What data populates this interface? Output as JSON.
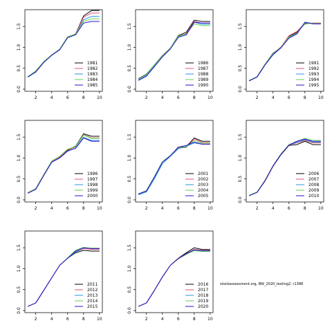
{
  "caption": "stockassessment.org, BW_2020_testing2, r1388",
  "colors": [
    "#000000",
    "#DF536B",
    "#2297E6",
    "#61D04F",
    "#2E0DCE"
  ],
  "chart_data": [
    {
      "type": "line",
      "x": [
        1,
        2,
        3,
        4,
        5,
        6,
        7,
        8,
        9,
        10
      ],
      "xticks": [
        2,
        4,
        6,
        8,
        10
      ],
      "yticks": [
        0.0,
        0.5,
        1.0,
        1.5
      ],
      "ylim": [
        -0.05,
        1.9
      ],
      "legend_position": "bottom-right",
      "series": [
        {
          "name": "1981",
          "values": [
            0.3,
            0.42,
            0.65,
            0.82,
            0.95,
            1.25,
            1.32,
            1.75,
            1.88,
            1.88
          ]
        },
        {
          "name": "1982",
          "values": [
            0.3,
            0.42,
            0.65,
            0.82,
            0.95,
            1.25,
            1.32,
            1.72,
            1.82,
            1.82
          ]
        },
        {
          "name": "1983",
          "values": [
            0.29,
            0.41,
            0.64,
            0.81,
            0.94,
            1.24,
            1.31,
            1.66,
            1.74,
            1.74
          ]
        },
        {
          "name": "1984",
          "values": [
            0.3,
            0.44,
            0.66,
            0.82,
            0.96,
            1.25,
            1.32,
            1.62,
            1.68,
            1.68
          ]
        },
        {
          "name": "1985",
          "values": [
            0.29,
            0.41,
            0.64,
            0.81,
            0.94,
            1.23,
            1.3,
            1.58,
            1.62,
            1.62
          ]
        }
      ]
    },
    {
      "type": "line",
      "x": [
        1,
        2,
        3,
        4,
        5,
        6,
        7,
        8,
        9,
        10
      ],
      "xticks": [
        2,
        4,
        6,
        8,
        10
      ],
      "yticks": [
        0.0,
        0.5,
        1.0,
        1.5
      ],
      "ylim": [
        -0.05,
        1.9
      ],
      "legend_position": "bottom-right",
      "series": [
        {
          "name": "1986",
          "values": [
            0.25,
            0.36,
            0.58,
            0.8,
            0.98,
            1.28,
            1.36,
            1.65,
            1.62,
            1.62
          ]
        },
        {
          "name": "1987",
          "values": [
            0.24,
            0.35,
            0.57,
            0.79,
            0.97,
            1.26,
            1.33,
            1.62,
            1.58,
            1.58
          ]
        },
        {
          "name": "1988",
          "values": [
            0.23,
            0.33,
            0.56,
            0.78,
            0.97,
            1.25,
            1.3,
            1.6,
            1.55,
            1.55
          ]
        },
        {
          "name": "1989",
          "values": [
            0.24,
            0.35,
            0.58,
            0.79,
            0.98,
            1.27,
            1.32,
            1.56,
            1.52,
            1.52
          ]
        },
        {
          "name": "1990",
          "values": [
            0.21,
            0.31,
            0.54,
            0.77,
            0.96,
            1.24,
            1.3,
            1.6,
            1.58,
            1.58
          ]
        }
      ]
    },
    {
      "type": "line",
      "x": [
        1,
        2,
        3,
        4,
        5,
        6,
        7,
        8,
        9,
        10
      ],
      "xticks": [
        2,
        4,
        6,
        8,
        10
      ],
      "yticks": [
        0.0,
        0.5,
        1.0,
        1.5
      ],
      "ylim": [
        -0.05,
        1.9
      ],
      "legend_position": "bottom-right",
      "series": [
        {
          "name": "1991",
          "values": [
            0.2,
            0.3,
            0.6,
            0.86,
            1.0,
            1.26,
            1.36,
            1.56,
            1.58,
            1.58
          ]
        },
        {
          "name": "1992",
          "values": [
            0.21,
            0.3,
            0.6,
            0.85,
            1.01,
            1.28,
            1.38,
            1.58,
            1.58,
            1.58
          ]
        },
        {
          "name": "1993",
          "values": [
            0.2,
            0.29,
            0.58,
            0.82,
            0.99,
            1.24,
            1.33,
            1.6,
            1.57,
            1.57
          ]
        },
        {
          "name": "1994",
          "values": [
            0.21,
            0.3,
            0.6,
            0.85,
            1.0,
            1.25,
            1.34,
            1.57,
            1.57,
            1.57
          ]
        },
        {
          "name": "1995",
          "values": [
            0.2,
            0.29,
            0.58,
            0.83,
            0.99,
            1.22,
            1.32,
            1.6,
            1.56,
            1.56
          ]
        }
      ]
    },
    {
      "type": "line",
      "x": [
        1,
        2,
        3,
        4,
        5,
        6,
        7,
        8,
        9,
        10
      ],
      "xticks": [
        2,
        4,
        6,
        8,
        10
      ],
      "yticks": [
        0.0,
        0.5,
        1.0,
        1.5
      ],
      "ylim": [
        -0.05,
        1.9
      ],
      "legend_position": "bottom-right",
      "series": [
        {
          "name": "1996",
          "values": [
            0.17,
            0.27,
            0.6,
            0.92,
            1.03,
            1.2,
            1.28,
            1.58,
            1.52,
            1.52
          ]
        },
        {
          "name": "1997",
          "values": [
            0.17,
            0.27,
            0.6,
            0.92,
            1.02,
            1.18,
            1.27,
            1.56,
            1.48,
            1.48
          ]
        },
        {
          "name": "1998",
          "values": [
            0.16,
            0.25,
            0.58,
            0.9,
            1.0,
            1.16,
            1.24,
            1.5,
            1.42,
            1.42
          ]
        },
        {
          "name": "1999",
          "values": [
            0.17,
            0.27,
            0.6,
            0.93,
            1.04,
            1.21,
            1.27,
            1.55,
            1.47,
            1.47
          ]
        },
        {
          "name": "2000",
          "values": [
            0.16,
            0.25,
            0.58,
            0.9,
            1.0,
            1.17,
            1.23,
            1.48,
            1.4,
            1.4
          ]
        }
      ]
    },
    {
      "type": "line",
      "x": [
        1,
        2,
        3,
        4,
        5,
        6,
        7,
        8,
        9,
        10
      ],
      "xticks": [
        2,
        4,
        6,
        8,
        10
      ],
      "yticks": [
        0.0,
        0.5,
        1.0,
        1.5
      ],
      "ylim": [
        -0.05,
        1.9
      ],
      "legend_position": "bottom-right",
      "series": [
        {
          "name": "2001",
          "values": [
            0.14,
            0.22,
            0.55,
            0.9,
            1.05,
            1.26,
            1.27,
            1.48,
            1.4,
            1.4
          ]
        },
        {
          "name": "2002",
          "values": [
            0.14,
            0.22,
            0.55,
            0.9,
            1.05,
            1.24,
            1.25,
            1.46,
            1.37,
            1.37
          ]
        },
        {
          "name": "2003",
          "values": [
            0.12,
            0.19,
            0.5,
            0.86,
            1.04,
            1.22,
            1.28,
            1.36,
            1.33,
            1.33
          ]
        },
        {
          "name": "2004",
          "values": [
            0.14,
            0.22,
            0.56,
            0.91,
            1.06,
            1.25,
            1.26,
            1.42,
            1.35,
            1.35
          ]
        },
        {
          "name": "2005",
          "values": [
            0.14,
            0.21,
            0.54,
            0.9,
            1.05,
            1.26,
            1.3,
            1.38,
            1.33,
            1.33
          ]
        }
      ]
    },
    {
      "type": "line",
      "x": [
        1,
        2,
        3,
        4,
        5,
        6,
        7,
        8,
        9,
        10
      ],
      "xticks": [
        2,
        4,
        6,
        8,
        10
      ],
      "yticks": [
        0.0,
        0.5,
        1.0,
        1.5
      ],
      "ylim": [
        -0.05,
        1.9
      ],
      "legend_position": "bottom-right",
      "series": [
        {
          "name": "2006",
          "values": [
            0.1,
            0.18,
            0.45,
            0.8,
            1.08,
            1.3,
            1.32,
            1.4,
            1.32,
            1.32
          ]
        },
        {
          "name": "2007",
          "values": [
            0.1,
            0.18,
            0.45,
            0.8,
            1.09,
            1.31,
            1.36,
            1.42,
            1.36,
            1.36
          ]
        },
        {
          "name": "2008",
          "values": [
            0.1,
            0.18,
            0.46,
            0.81,
            1.09,
            1.31,
            1.38,
            1.44,
            1.38,
            1.38
          ]
        },
        {
          "name": "2009",
          "values": [
            0.11,
            0.19,
            0.47,
            0.82,
            1.1,
            1.32,
            1.4,
            1.47,
            1.42,
            1.42
          ]
        },
        {
          "name": "2010",
          "values": [
            0.1,
            0.18,
            0.46,
            0.81,
            1.09,
            1.31,
            1.4,
            1.45,
            1.4,
            1.4
          ]
        }
      ]
    },
    {
      "type": "line",
      "x": [
        1,
        2,
        3,
        4,
        5,
        6,
        7,
        8,
        9,
        10
      ],
      "xticks": [
        2,
        4,
        6,
        8,
        10
      ],
      "yticks": [
        0.0,
        0.5,
        1.0,
        1.5
      ],
      "ylim": [
        -0.05,
        1.9
      ],
      "legend_position": "bottom-right",
      "series": [
        {
          "name": "2011",
          "values": [
            0.1,
            0.18,
            0.48,
            0.78,
            1.08,
            1.25,
            1.38,
            1.44,
            1.42,
            1.42
          ]
        },
        {
          "name": "2012",
          "values": [
            0.1,
            0.18,
            0.48,
            0.78,
            1.08,
            1.25,
            1.4,
            1.48,
            1.46,
            1.46
          ]
        },
        {
          "name": "2013",
          "values": [
            0.1,
            0.18,
            0.48,
            0.78,
            1.08,
            1.25,
            1.4,
            1.5,
            1.48,
            1.48
          ]
        },
        {
          "name": "2014",
          "values": [
            0.1,
            0.18,
            0.48,
            0.78,
            1.08,
            1.26,
            1.44,
            1.51,
            1.49,
            1.49
          ]
        },
        {
          "name": "2015",
          "values": [
            0.1,
            0.18,
            0.48,
            0.78,
            1.08,
            1.25,
            1.42,
            1.5,
            1.48,
            1.48
          ]
        }
      ]
    },
    {
      "type": "line",
      "x": [
        1,
        2,
        3,
        4,
        5,
        6,
        7,
        8,
        9,
        10
      ],
      "xticks": [
        2,
        4,
        6,
        8,
        10
      ],
      "yticks": [
        0.0,
        0.5,
        1.0,
        1.5
      ],
      "ylim": [
        -0.05,
        1.9
      ],
      "legend_position": "bottom-right",
      "series": [
        {
          "name": "2016",
          "values": [
            0.1,
            0.18,
            0.48,
            0.8,
            1.08,
            1.25,
            1.38,
            1.5,
            1.46,
            1.46
          ]
        },
        {
          "name": "2017",
          "values": [
            0.1,
            0.18,
            0.48,
            0.8,
            1.08,
            1.25,
            1.36,
            1.46,
            1.44,
            1.44
          ]
        },
        {
          "name": "2018",
          "values": [
            0.1,
            0.18,
            0.48,
            0.8,
            1.08,
            1.24,
            1.34,
            1.44,
            1.42,
            1.42
          ]
        },
        {
          "name": "2019",
          "values": [
            0.1,
            0.18,
            0.48,
            0.8,
            1.08,
            1.24,
            1.34,
            1.43,
            1.41,
            1.41
          ]
        },
        {
          "name": "2020",
          "values": [
            0.1,
            0.18,
            0.48,
            0.8,
            1.08,
            1.24,
            1.36,
            1.45,
            1.43,
            1.43
          ]
        }
      ]
    }
  ]
}
